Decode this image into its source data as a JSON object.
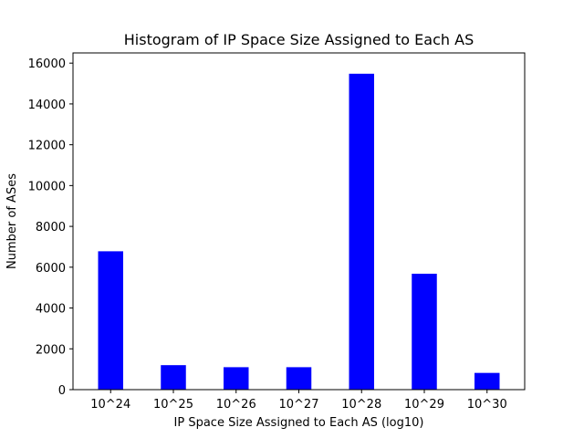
{
  "chart_data": {
    "type": "bar",
    "title": "Histogram of IP Space Size Assigned to Each AS",
    "xlabel": "IP Space Size Assigned to Each AS (log10)",
    "ylabel": "Number of ASes",
    "categories": [
      "10^24",
      "10^25",
      "10^26",
      "10^27",
      "10^28",
      "10^29",
      "10^30"
    ],
    "values": [
      6780,
      1200,
      1100,
      1100,
      15480,
      5680,
      820
    ],
    "ylim": [
      0,
      16500
    ],
    "yticks": [
      0,
      2000,
      4000,
      6000,
      8000,
      10000,
      12000,
      14000,
      16000
    ],
    "bar_color": "#0000ff",
    "grid": false,
    "legend": false
  }
}
